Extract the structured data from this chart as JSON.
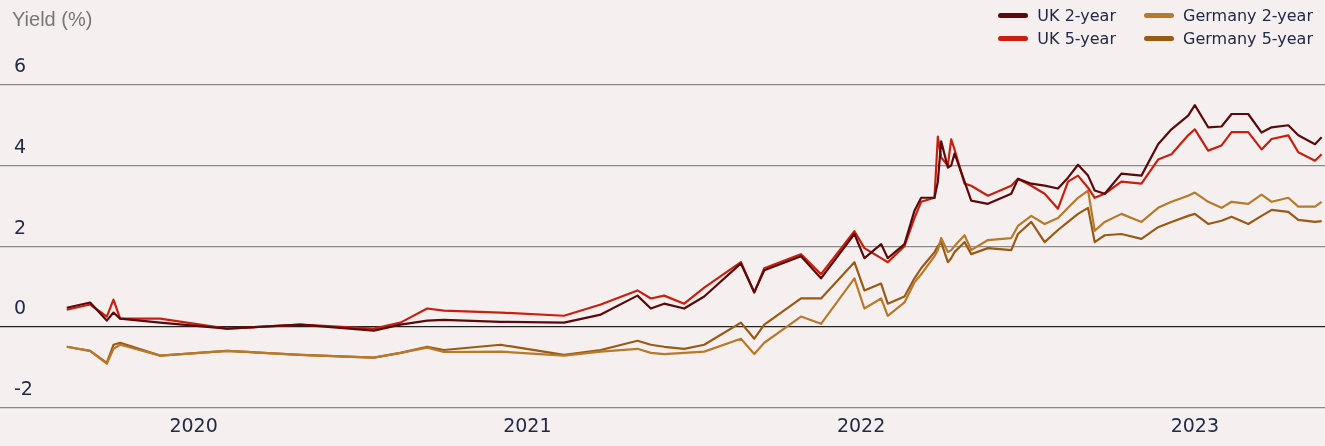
{
  "chart_data": {
    "type": "line",
    "ylabel": "Yield (%)",
    "legend": "top right",
    "grid": "y",
    "marker": "none",
    "line_style": "solid",
    "xlim": [
      2019.92,
      2023.89
    ],
    "xticks": [
      {
        "value": 2020.5,
        "label": "2020"
      },
      {
        "value": 2021.5,
        "label": "2021"
      },
      {
        "value": 2022.5,
        "label": "2022"
      },
      {
        "value": 2023.5,
        "label": "2023"
      }
    ],
    "ylim": [
      -2,
      6
    ],
    "yticks": [
      -2,
      0,
      2,
      4,
      6
    ],
    "x": [
      2020.12,
      2020.19,
      2020.24,
      2020.26,
      2020.28,
      2020.4,
      2020.6,
      2020.82,
      2021.04,
      2021.12,
      2021.2,
      2021.25,
      2021.42,
      2021.61,
      2021.72,
      2021.83,
      2021.87,
      2021.91,
      2021.97,
      2022.03,
      2022.14,
      2022.18,
      2022.21,
      2022.32,
      2022.38,
      2022.48,
      2022.51,
      2022.56,
      2022.58,
      2022.63,
      2022.66,
      2022.68,
      2022.72,
      2022.73,
      2022.74,
      2022.76,
      2022.77,
      2022.78,
      2022.81,
      2022.83,
      2022.88,
      2022.95,
      2022.97,
      2023.01,
      2023.05,
      2023.09,
      2023.12,
      2023.15,
      2023.18,
      2023.2,
      2023.23,
      2023.28,
      2023.34,
      2023.39,
      2023.43,
      2023.48,
      2023.5,
      2023.54,
      2023.58,
      2023.61,
      2023.66,
      2023.7,
      2023.73,
      2023.78,
      2023.81,
      2023.86,
      2023.88
    ],
    "series": [
      {
        "name": "UK 2-year",
        "color": "#5a0a0a",
        "values": [
          0.47,
          0.6,
          0.15,
          0.35,
          0.2,
          0.1,
          -0.05,
          0.05,
          -0.1,
          0.05,
          0.15,
          0.17,
          0.12,
          0.1,
          0.3,
          0.77,
          0.45,
          0.57,
          0.45,
          0.75,
          1.57,
          0.85,
          1.4,
          1.75,
          1.2,
          2.3,
          1.7,
          2.05,
          1.7,
          2.05,
          2.88,
          3.2,
          3.2,
          3.6,
          4.6,
          3.95,
          4.0,
          4.3,
          3.6,
          3.13,
          3.05,
          3.3,
          3.67,
          3.55,
          3.5,
          3.43,
          3.7,
          4.02,
          3.75,
          3.38,
          3.3,
          3.8,
          3.75,
          4.53,
          4.9,
          5.24,
          5.5,
          4.95,
          4.97,
          5.28,
          5.28,
          4.82,
          4.95,
          5.0,
          4.75,
          4.53,
          4.7
        ]
      },
      {
        "name": "UK 5-year",
        "color": "#c8200e",
        "values": [
          0.42,
          0.55,
          0.25,
          0.67,
          0.2,
          0.2,
          -0.05,
          0.05,
          -0.05,
          0.1,
          0.45,
          0.4,
          0.35,
          0.27,
          0.55,
          0.9,
          0.7,
          0.77,
          0.57,
          0.97,
          1.6,
          0.85,
          1.45,
          1.8,
          1.3,
          2.37,
          1.95,
          1.7,
          1.6,
          2.0,
          2.7,
          3.1,
          3.2,
          4.72,
          4.2,
          4.0,
          4.65,
          4.4,
          3.55,
          3.5,
          3.25,
          3.5,
          3.67,
          3.5,
          3.3,
          2.93,
          3.6,
          3.75,
          3.45,
          3.2,
          3.3,
          3.6,
          3.55,
          4.15,
          4.28,
          4.75,
          4.9,
          4.37,
          4.5,
          4.83,
          4.83,
          4.4,
          4.66,
          4.75,
          4.33,
          4.12,
          4.28
        ]
      },
      {
        "name": "Germany 2-year",
        "color": "#b8792a",
        "values": [
          -0.5,
          -0.6,
          -0.92,
          -0.55,
          -0.45,
          -0.72,
          -0.6,
          -0.7,
          -0.77,
          -0.65,
          -0.52,
          -0.63,
          -0.62,
          -0.72,
          -0.62,
          -0.55,
          -0.65,
          -0.68,
          -0.65,
          -0.62,
          -0.3,
          -0.68,
          -0.4,
          0.25,
          0.07,
          1.2,
          0.45,
          0.7,
          0.27,
          0.6,
          1.1,
          1.3,
          1.75,
          1.9,
          2.2,
          1.85,
          1.9,
          2.0,
          2.27,
          1.9,
          2.15,
          2.2,
          2.5,
          2.75,
          2.55,
          2.7,
          2.95,
          3.2,
          3.38,
          2.38,
          2.6,
          2.8,
          2.6,
          2.95,
          3.1,
          3.25,
          3.33,
          3.1,
          2.95,
          3.1,
          3.05,
          3.28,
          3.1,
          3.2,
          2.98,
          2.98,
          3.1
        ]
      },
      {
        "name": "Germany 5-year",
        "color": "#9a5a14",
        "values": [
          -0.5,
          -0.6,
          -0.9,
          -0.45,
          -0.4,
          -0.72,
          -0.6,
          -0.7,
          -0.77,
          -0.65,
          -0.5,
          -0.58,
          -0.45,
          -0.7,
          -0.58,
          -0.35,
          -0.45,
          -0.5,
          -0.55,
          -0.45,
          0.1,
          -0.3,
          0.05,
          0.7,
          0.7,
          1.6,
          0.9,
          1.07,
          0.57,
          0.75,
          1.2,
          1.45,
          1.85,
          2.0,
          2.1,
          1.6,
          1.7,
          1.85,
          2.1,
          1.8,
          1.95,
          1.9,
          2.3,
          2.6,
          2.1,
          2.4,
          2.6,
          2.8,
          2.95,
          2.1,
          2.27,
          2.3,
          2.18,
          2.47,
          2.6,
          2.75,
          2.8,
          2.55,
          2.63,
          2.73,
          2.55,
          2.75,
          2.9,
          2.85,
          2.65,
          2.6,
          2.62
        ]
      }
    ]
  }
}
